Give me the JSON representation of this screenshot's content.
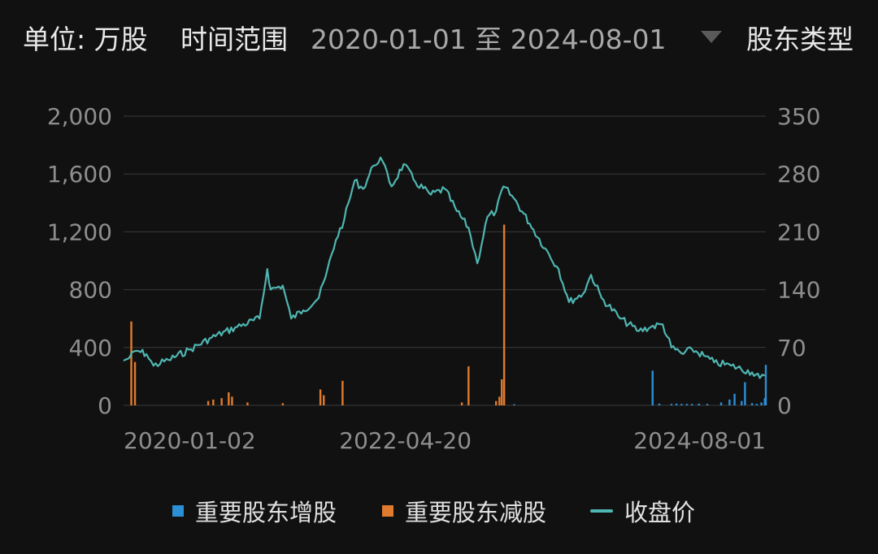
{
  "header": {
    "unit_label": "单位: 万股",
    "range_label": "时间范围",
    "range_value": "2020-01-01 至 2024-08-01",
    "holder_type_label": "股东类型"
  },
  "colors": {
    "background": "#111111",
    "increase": "#2b8fd6",
    "decrease": "#e07b2e",
    "close_price": "#4fb6b1",
    "grid": "#3a3a3a"
  },
  "chart_data": {
    "type": "bar+line",
    "x_ticks": [
      "2020-01-02",
      "2022-04-20",
      "2024-08-01"
    ],
    "y_left": {
      "ticks": [
        "0",
        "400",
        "800",
        "1,200",
        "1,600",
        "2,000"
      ],
      "min": 0,
      "max": 2000
    },
    "y_right": {
      "ticks": [
        "0",
        "70",
        "140",
        "210",
        "280",
        "350"
      ],
      "min": 0,
      "max": 350
    },
    "grid": "horizontal",
    "legend_position": "bottom",
    "legend": [
      "重要股东增股",
      "重要股东减股",
      "收盘价"
    ],
    "series": [
      {
        "name": "收盘价",
        "kind": "line",
        "axis": "right",
        "points": [
          [
            "2020-01-02",
            54
          ],
          [
            "2020-01-20",
            58
          ],
          [
            "2020-02-10",
            66
          ],
          [
            "2020-03-10",
            62
          ],
          [
            "2020-03-31",
            48
          ],
          [
            "2020-05-15",
            55
          ],
          [
            "2020-07-20",
            68
          ],
          [
            "2020-09-20",
            82
          ],
          [
            "2020-12-05",
            95
          ],
          [
            "2021-02-10",
            105
          ],
          [
            "2021-03-05",
            165
          ],
          [
            "2021-03-15",
            140
          ],
          [
            "2021-04-20",
            145
          ],
          [
            "2021-05-15",
            105
          ],
          [
            "2021-06-20",
            115
          ],
          [
            "2021-08-05",
            130
          ],
          [
            "2021-08-25",
            155
          ],
          [
            "2021-09-25",
            200
          ],
          [
            "2021-10-20",
            225
          ],
          [
            "2021-11-20",
            272
          ],
          [
            "2021-12-15",
            262
          ],
          [
            "2022-01-15",
            290
          ],
          [
            "2022-02-05",
            300
          ],
          [
            "2022-03-10",
            265
          ],
          [
            "2022-04-15",
            292
          ],
          [
            "2022-05-20",
            270
          ],
          [
            "2022-07-05",
            255
          ],
          [
            "2022-08-15",
            262
          ],
          [
            "2022-09-20",
            235
          ],
          [
            "2022-10-25",
            215
          ],
          [
            "2022-11-20",
            172
          ],
          [
            "2022-12-20",
            228
          ],
          [
            "2023-01-15",
            235
          ],
          [
            "2023-02-06",
            265
          ],
          [
            "2023-03-10",
            250
          ],
          [
            "2023-04-25",
            220
          ],
          [
            "2023-06-10",
            190
          ],
          [
            "2023-07-20",
            165
          ],
          [
            "2023-08-20",
            125
          ],
          [
            "2023-10-01",
            135
          ],
          [
            "2023-10-25",
            158
          ],
          [
            "2023-11-25",
            130
          ],
          [
            "2024-01-20",
            105
          ],
          [
            "2024-03-15",
            90
          ],
          [
            "2024-04-20",
            95
          ],
          [
            "2024-05-25",
            98
          ],
          [
            "2024-06-20",
            70
          ],
          [
            "2024-07-25",
            62
          ],
          [
            "2024-08-20",
            68
          ],
          [
            "2024-09-25",
            60
          ],
          [
            "2024-10-25",
            52
          ],
          [
            "2024-12-15",
            48
          ],
          [
            "2025-02-15",
            40
          ],
          [
            "2025-03-10",
            33
          ],
          [
            "2025-03-25",
            36
          ]
        ]
      },
      {
        "name": "重要股东减股",
        "kind": "bar",
        "axis": "left",
        "points": [
          [
            "2020-01-25",
            580
          ],
          [
            "2020-02-05",
            300
          ],
          [
            "2020-09-10",
            30
          ],
          [
            "2020-09-25",
            40
          ],
          [
            "2020-10-20",
            50
          ],
          [
            "2020-11-10",
            90
          ],
          [
            "2020-11-20",
            60
          ],
          [
            "2021-01-05",
            20
          ],
          [
            "2021-04-20",
            15
          ],
          [
            "2021-08-10",
            110
          ],
          [
            "2021-08-20",
            70
          ],
          [
            "2021-10-15",
            170
          ],
          [
            "2022-10-05",
            20
          ],
          [
            "2022-10-25",
            270
          ],
          [
            "2023-01-15",
            30
          ],
          [
            "2023-01-25",
            60
          ],
          [
            "2023-02-01",
            180
          ],
          [
            "2023-02-08",
            1250
          ]
        ]
      },
      {
        "name": "重要股东增股",
        "kind": "bar",
        "axis": "left",
        "points": [
          [
            "2023-03-10",
            8
          ],
          [
            "2024-04-25",
            240
          ],
          [
            "2024-05-15",
            12
          ],
          [
            "2024-06-20",
            10
          ],
          [
            "2024-07-05",
            12
          ],
          [
            "2024-07-20",
            10
          ],
          [
            "2024-08-05",
            10
          ],
          [
            "2024-08-20",
            10
          ],
          [
            "2024-09-10",
            12
          ],
          [
            "2024-10-05",
            10
          ],
          [
            "2024-11-15",
            20
          ],
          [
            "2024-12-10",
            40
          ],
          [
            "2024-12-25",
            80
          ],
          [
            "2025-01-15",
            30
          ],
          [
            "2025-01-25",
            160
          ],
          [
            "2025-02-15",
            15
          ],
          [
            "2025-03-01",
            10
          ],
          [
            "2025-03-15",
            20
          ],
          [
            "2025-03-25",
            50
          ],
          [
            "2025-03-28",
            280
          ]
        ]
      }
    ]
  }
}
